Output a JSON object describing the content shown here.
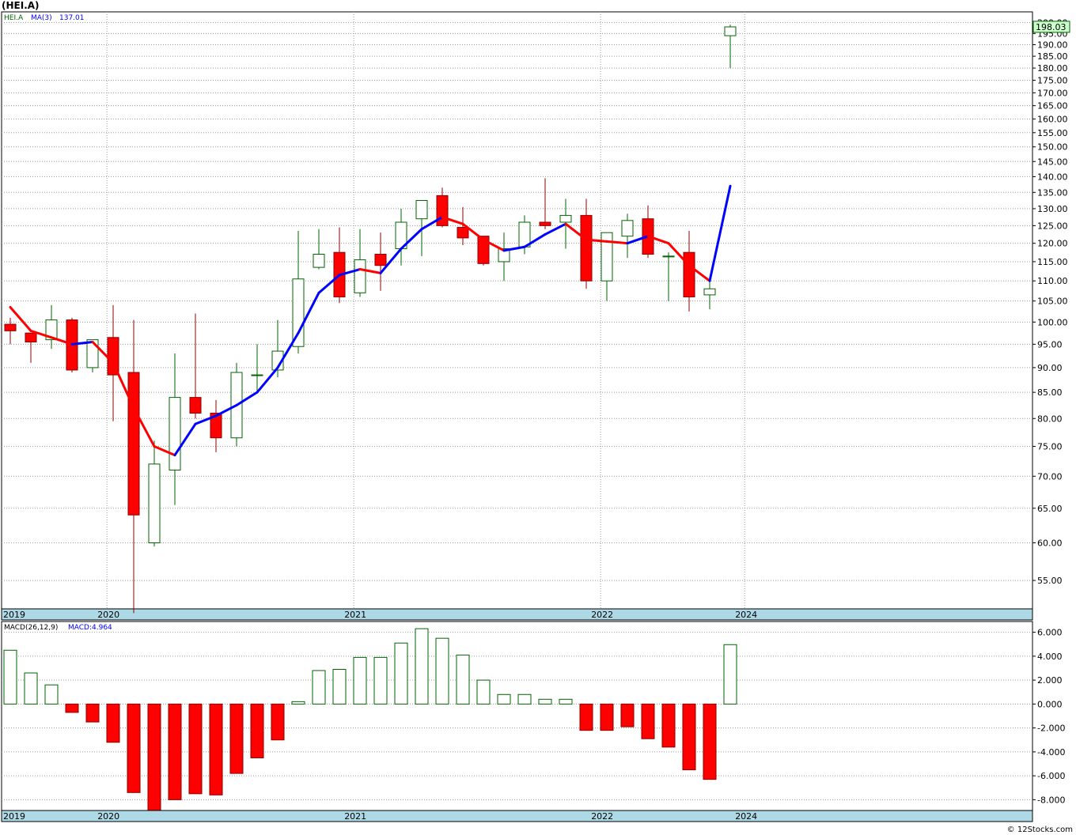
{
  "symbol_title": "(HEI.A)",
  "watermark": "© 12Stocks.com",
  "chart_data": [
    {
      "type": "candlestick",
      "legend": {
        "symbol": "HEI.A",
        "ma_label": "MA(3)",
        "ma_value": "137.01"
      },
      "current_price_label": "198.03",
      "y_scale": "log",
      "ylim": [
        51.5,
        205
      ],
      "y_ticks": [
        "200.00",
        "195.00",
        "190.00",
        "185.00",
        "180.00",
        "175.00",
        "170.00",
        "165.00",
        "160.00",
        "155.00",
        "150.00",
        "145.00",
        "140.00",
        "135.00",
        "130.00",
        "125.00",
        "120.00",
        "115.00",
        "110.00",
        "105.00",
        "100.00",
        "95.00",
        "90.00",
        "85.00",
        "80.00",
        "75.00",
        "70.00",
        "65.00",
        "60.00",
        "55.00"
      ],
      "year_labels": [
        {
          "label": "2019",
          "index": -0.5
        },
        {
          "label": "2020",
          "index": 4.2
        },
        {
          "label": "2021",
          "index": 16.2
        },
        {
          "label": "2022",
          "index": 28.2
        },
        {
          "label": "2024",
          "index": 35.2
        }
      ],
      "ohlc": [
        [
          99.5,
          101,
          95,
          98
        ],
        [
          97.5,
          97.5,
          91,
          95.5
        ],
        [
          96,
          104,
          94,
          100.5
        ],
        [
          100.5,
          101,
          89,
          89.5
        ],
        [
          90,
          96,
          89,
          96
        ],
        [
          96.5,
          104,
          79.5,
          88.5
        ],
        [
          89,
          100.5,
          51,
          64
        ],
        [
          60,
          76,
          59.5,
          72
        ],
        [
          71,
          93,
          65.5,
          84
        ],
        [
          84,
          102,
          80,
          81
        ],
        [
          81,
          83.5,
          74,
          76.5
        ],
        [
          76.5,
          91,
          75,
          89
        ],
        [
          88.5,
          95,
          85,
          88.5
        ],
        [
          89.5,
          100.5,
          88,
          93.5
        ],
        [
          94.5,
          123.5,
          93,
          110.5
        ],
        [
          113.5,
          124,
          113,
          117
        ],
        [
          117.5,
          124.5,
          104.5,
          106
        ],
        [
          107,
          124,
          106,
          115.5
        ],
        [
          117,
          123,
          107.5,
          114
        ],
        [
          118.5,
          130,
          114,
          126
        ],
        [
          127,
          131.5,
          116.5,
          132.5
        ],
        [
          134,
          136.5,
          124.5,
          125
        ],
        [
          124.5,
          130.5,
          119.5,
          121.5
        ],
        [
          122,
          122,
          114,
          114.5
        ],
        [
          115,
          123,
          110,
          118.5
        ],
        [
          119,
          128,
          117,
          126
        ],
        [
          126,
          139.5,
          124,
          125
        ],
        [
          126,
          133,
          118.5,
          128
        ],
        [
          128,
          133,
          108,
          110
        ],
        [
          110,
          123,
          105,
          123
        ],
        [
          122,
          128.5,
          116,
          126.5
        ],
        [
          127,
          131,
          116,
          117
        ],
        [
          116.5,
          117.5,
          105,
          116.5
        ],
        [
          117.5,
          123.5,
          102.5,
          106
        ],
        [
          106.5,
          110,
          103,
          108
        ],
        [
          194,
          199,
          180,
          198
        ]
      ],
      "ma_points": [
        {
          "i": 0,
          "v": 103.5
        },
        {
          "i": 1,
          "v": 98
        },
        {
          "i": 2,
          "v": 96.5
        },
        {
          "i": 3,
          "v": 95
        },
        {
          "i": 4,
          "v": 95.5
        },
        {
          "i": 5,
          "v": 91
        },
        {
          "i": 6,
          "v": 82
        },
        {
          "i": 7,
          "v": 75
        },
        {
          "i": 8,
          "v": 73.5
        },
        {
          "i": 9,
          "v": 79
        },
        {
          "i": 10,
          "v": 80.5
        },
        {
          "i": 11,
          "v": 82.5
        },
        {
          "i": 12,
          "v": 85
        },
        {
          "i": 13,
          "v": 90
        },
        {
          "i": 14,
          "v": 97.5
        },
        {
          "i": 15,
          "v": 107
        },
        {
          "i": 16,
          "v": 111.5
        },
        {
          "i": 17,
          "v": 113
        },
        {
          "i": 18,
          "v": 112
        },
        {
          "i": 19,
          "v": 118.5
        },
        {
          "i": 20,
          "v": 124
        },
        {
          "i": 21,
          "v": 127.5
        },
        {
          "i": 22,
          "v": 125.5
        },
        {
          "i": 23,
          "v": 121
        },
        {
          "i": 24,
          "v": 118
        },
        {
          "i": 25,
          "v": 119
        },
        {
          "i": 26,
          "v": 122.5
        },
        {
          "i": 27,
          "v": 125.5
        },
        {
          "i": 28,
          "v": 121
        },
        {
          "i": 29,
          "v": 120.5
        },
        {
          "i": 30,
          "v": 120
        },
        {
          "i": 31,
          "v": 122
        },
        {
          "i": 32,
          "v": 120
        },
        {
          "i": 33,
          "v": 114
        },
        {
          "i": 34,
          "v": 110
        },
        {
          "i": 35,
          "v": 137
        }
      ]
    },
    {
      "type": "bar",
      "legend": {
        "label": "MACD(26,12,9)",
        "value_label": "MACD:4.964"
      },
      "ylim": [
        -8.9,
        6.9
      ],
      "y_ticks": [
        "6.000",
        "4.000",
        "2.000",
        "0.000",
        "-2.000",
        "-4.000",
        "-6.000",
        "-8.000"
      ],
      "values": [
        4.5,
        2.6,
        1.6,
        -0.7,
        -1.5,
        -3.2,
        -7.4,
        -8.9,
        -8,
        -7.5,
        -7.6,
        -5.8,
        -4.5,
        -3,
        0.2,
        2.8,
        2.9,
        3.9,
        3.9,
        5.1,
        6.3,
        5.5,
        4.1,
        2,
        0.8,
        0.8,
        0.4,
        0.4,
        -2.2,
        -2.2,
        -1.9,
        -2.9,
        -3.6,
        -5.5,
        -6.3,
        4.964
      ],
      "year_labels": [
        {
          "label": "2019",
          "index": -0.5
        },
        {
          "label": "2020",
          "index": 4.2
        },
        {
          "label": "2021",
          "index": 16.2
        },
        {
          "label": "2022",
          "index": 28.2
        },
        {
          "label": "2024",
          "index": 35.2
        }
      ]
    }
  ]
}
